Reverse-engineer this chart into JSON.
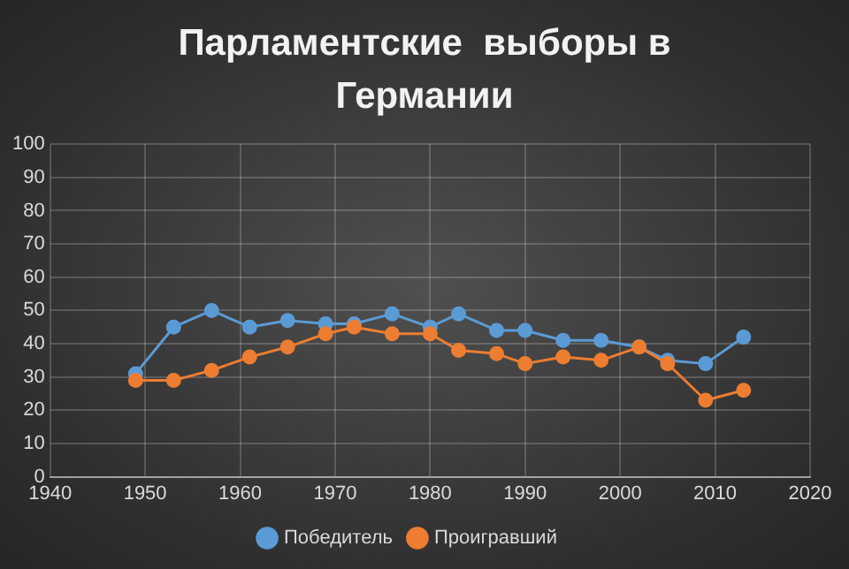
{
  "chart_data": {
    "type": "line",
    "title": "Парламентские  выборы в Германии",
    "x": [
      1949,
      1953,
      1957,
      1961,
      1965,
      1969,
      1972,
      1976,
      1980,
      1983,
      1987,
      1990,
      1994,
      1998,
      2002,
      2005,
      2009,
      2013
    ],
    "series": [
      {
        "name": "Победитель",
        "color": "#5b9bd5",
        "values": [
          31,
          45,
          50,
          45,
          47,
          46,
          46,
          49,
          45,
          49,
          44,
          44,
          41,
          41,
          39,
          35,
          34,
          42
        ]
      },
      {
        "name": "Проигравший",
        "color": "#ed7d31",
        "values": [
          29,
          29,
          32,
          36,
          39,
          43,
          45,
          43,
          43,
          38,
          37,
          34,
          36,
          35,
          39,
          34,
          23,
          26
        ]
      }
    ],
    "xlim": [
      1940,
      2020
    ],
    "xticks": [
      1940,
      1950,
      1960,
      1970,
      1980,
      1990,
      2000,
      2010,
      2020
    ],
    "ylim": [
      0,
      100
    ],
    "yticks": [
      0,
      10,
      20,
      30,
      40,
      50,
      60,
      70,
      80,
      90,
      100
    ],
    "grid": true,
    "legend": "bottom",
    "marker": "circle",
    "line_style": "solid"
  }
}
